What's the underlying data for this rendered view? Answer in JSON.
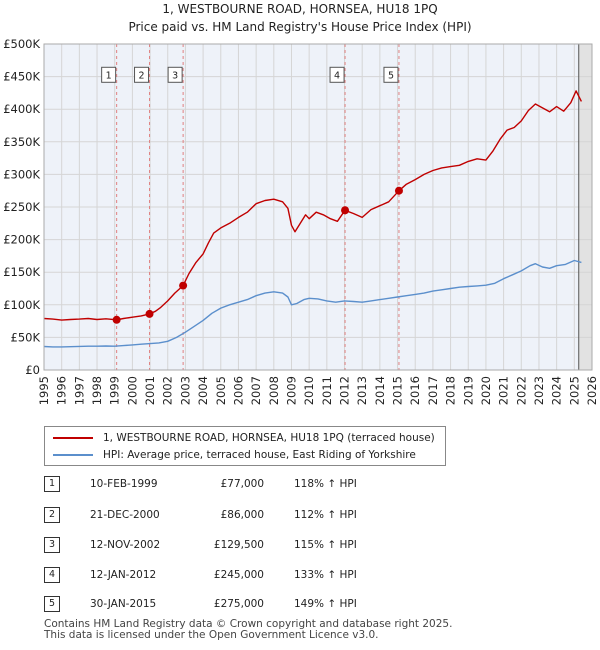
{
  "header": {
    "title": "1, WESTBOURNE ROAD, HORNSEA, HU18 1PQ",
    "subtitle": "Price paid vs. HM Land Registry's House Price Index (HPI)"
  },
  "chart_data": {
    "type": "line",
    "title": "1, WESTBOURNE ROAD, HORNSEA, HU18 1PQ",
    "subtitle": "Price paid vs. HM Land Registry's House Price Index (HPI)",
    "xlim": [
      1995,
      2026
    ],
    "ylim": [
      0,
      500000
    ],
    "x_ticks": [
      1995,
      1996,
      1997,
      1998,
      1999,
      2000,
      2001,
      2002,
      2003,
      2004,
      2005,
      2006,
      2007,
      2008,
      2009,
      2010,
      2011,
      2012,
      2013,
      2014,
      2015,
      2016,
      2017,
      2018,
      2019,
      2020,
      2021,
      2022,
      2023,
      2024,
      2025,
      2026
    ],
    "y_ticks": [
      0,
      50000,
      100000,
      150000,
      200000,
      250000,
      300000,
      350000,
      400000,
      450000,
      500000
    ],
    "y_tick_labels": [
      "£0",
      "£50K",
      "£100K",
      "£150K",
      "£200K",
      "£250K",
      "£300K",
      "£350K",
      "£400K",
      "£450K",
      "£500K"
    ],
    "colors": {
      "property": "#c00000",
      "hpi": "#5b8fcc",
      "grid": "#d5d5d5",
      "plot_bg": "#eef2f9",
      "marker_line": "#e08080"
    },
    "future_from": 2025.25,
    "series": [
      {
        "name": "1, WESTBOURNE ROAD, HORNSEA, HU18 1PQ (terraced house)",
        "color": "#c00000",
        "points": [
          [
            1995.0,
            79000
          ],
          [
            1995.5,
            78000
          ],
          [
            1996.0,
            76500
          ],
          [
            1996.5,
            77500
          ],
          [
            1997.0,
            78000
          ],
          [
            1997.5,
            79000
          ],
          [
            1998.0,
            77500
          ],
          [
            1998.5,
            78500
          ],
          [
            1999.11,
            77000
          ],
          [
            1999.5,
            79000
          ],
          [
            2000.0,
            81000
          ],
          [
            2000.5,
            83000
          ],
          [
            2000.97,
            86000
          ],
          [
            2001.3,
            90000
          ],
          [
            2001.6,
            96000
          ],
          [
            2002.0,
            106000
          ],
          [
            2002.4,
            118000
          ],
          [
            2002.87,
            129500
          ],
          [
            2003.2,
            148000
          ],
          [
            2003.6,
            165000
          ],
          [
            2004.0,
            178000
          ],
          [
            2004.3,
            195000
          ],
          [
            2004.6,
            210000
          ],
          [
            2005.0,
            218000
          ],
          [
            2005.5,
            225000
          ],
          [
            2006.0,
            234000
          ],
          [
            2006.5,
            242000
          ],
          [
            2007.0,
            255000
          ],
          [
            2007.5,
            260000
          ],
          [
            2008.0,
            262000
          ],
          [
            2008.5,
            258000
          ],
          [
            2008.8,
            248000
          ],
          [
            2009.0,
            222000
          ],
          [
            2009.2,
            212000
          ],
          [
            2009.5,
            225000
          ],
          [
            2009.8,
            238000
          ],
          [
            2010.0,
            232000
          ],
          [
            2010.4,
            242000
          ],
          [
            2010.8,
            238000
          ],
          [
            2011.2,
            232000
          ],
          [
            2011.6,
            228000
          ],
          [
            2012.03,
            245000
          ],
          [
            2012.5,
            240000
          ],
          [
            2013.0,
            234000
          ],
          [
            2013.5,
            246000
          ],
          [
            2014.0,
            252000
          ],
          [
            2014.5,
            258000
          ],
          [
            2015.08,
            275000
          ],
          [
            2015.5,
            285000
          ],
          [
            2016.0,
            292000
          ],
          [
            2016.5,
            300000
          ],
          [
            2017.0,
            306000
          ],
          [
            2017.5,
            310000
          ],
          [
            2018.0,
            312000
          ],
          [
            2018.5,
            314000
          ],
          [
            2019.0,
            320000
          ],
          [
            2019.5,
            324000
          ],
          [
            2020.0,
            322000
          ],
          [
            2020.4,
            336000
          ],
          [
            2020.8,
            354000
          ],
          [
            2021.2,
            368000
          ],
          [
            2021.6,
            372000
          ],
          [
            2022.0,
            382000
          ],
          [
            2022.4,
            398000
          ],
          [
            2022.8,
            408000
          ],
          [
            2023.2,
            402000
          ],
          [
            2023.6,
            396000
          ],
          [
            2024.0,
            404000
          ],
          [
            2024.4,
            397000
          ],
          [
            2024.8,
            410000
          ],
          [
            2025.1,
            428000
          ],
          [
            2025.4,
            412000
          ]
        ]
      },
      {
        "name": "HPI: Average price, terraced house, East Riding of Yorkshire",
        "color": "#5b8fcc",
        "points": [
          [
            1995.0,
            36000
          ],
          [
            1995.5,
            35500
          ],
          [
            1996.0,
            35500
          ],
          [
            1996.5,
            35800
          ],
          [
            1997.0,
            36200
          ],
          [
            1997.5,
            36500
          ],
          [
            1998.0,
            36500
          ],
          [
            1998.5,
            36800
          ],
          [
            1999.0,
            36500
          ],
          [
            1999.5,
            37500
          ],
          [
            2000.0,
            38500
          ],
          [
            2000.5,
            39500
          ],
          [
            2001.0,
            40500
          ],
          [
            2001.5,
            41500
          ],
          [
            2002.0,
            44000
          ],
          [
            2002.5,
            50000
          ],
          [
            2003.0,
            58000
          ],
          [
            2003.5,
            67000
          ],
          [
            2004.0,
            76000
          ],
          [
            2004.5,
            87000
          ],
          [
            2005.0,
            95000
          ],
          [
            2005.5,
            100000
          ],
          [
            2006.0,
            104000
          ],
          [
            2006.5,
            108000
          ],
          [
            2007.0,
            114000
          ],
          [
            2007.5,
            118000
          ],
          [
            2008.0,
            120000
          ],
          [
            2008.5,
            118000
          ],
          [
            2008.8,
            112000
          ],
          [
            2009.0,
            100000
          ],
          [
            2009.3,
            102000
          ],
          [
            2009.7,
            108000
          ],
          [
            2010.0,
            110000
          ],
          [
            2010.5,
            109000
          ],
          [
            2011.0,
            106000
          ],
          [
            2011.5,
            104000
          ],
          [
            2012.0,
            106000
          ],
          [
            2012.5,
            105000
          ],
          [
            2013.0,
            104000
          ],
          [
            2013.5,
            106000
          ],
          [
            2014.0,
            108000
          ],
          [
            2014.5,
            110000
          ],
          [
            2015.0,
            112000
          ],
          [
            2015.5,
            114000
          ],
          [
            2016.0,
            116000
          ],
          [
            2016.5,
            118000
          ],
          [
            2017.0,
            121000
          ],
          [
            2017.5,
            123000
          ],
          [
            2018.0,
            125000
          ],
          [
            2018.5,
            127000
          ],
          [
            2019.0,
            128000
          ],
          [
            2019.5,
            129000
          ],
          [
            2020.0,
            130000
          ],
          [
            2020.5,
            133000
          ],
          [
            2021.0,
            140000
          ],
          [
            2021.5,
            146000
          ],
          [
            2022.0,
            152000
          ],
          [
            2022.5,
            160000
          ],
          [
            2022.8,
            163000
          ],
          [
            2023.2,
            158000
          ],
          [
            2023.6,
            156000
          ],
          [
            2024.0,
            160000
          ],
          [
            2024.5,
            162000
          ],
          [
            2025.0,
            168000
          ],
          [
            2025.4,
            165000
          ]
        ]
      }
    ],
    "sales": [
      {
        "n": "1",
        "x": 1999.11,
        "price": 77000
      },
      {
        "n": "2",
        "x": 2000.97,
        "price": 86000
      },
      {
        "n": "3",
        "x": 2002.87,
        "price": 129500
      },
      {
        "n": "4",
        "x": 2012.03,
        "price": 245000
      },
      {
        "n": "5",
        "x": 2015.08,
        "price": 275000
      }
    ]
  },
  "legend": {
    "property_label": "1, WESTBOURNE ROAD, HORNSEA, HU18 1PQ (terraced house)",
    "hpi_label": "HPI: Average price, terraced house, East Riding of Yorkshire"
  },
  "sales_table": [
    {
      "n": "1",
      "date": "10-FEB-1999",
      "price": "£77,000",
      "hpi": "118% ↑ HPI"
    },
    {
      "n": "2",
      "date": "21-DEC-2000",
      "price": "£86,000",
      "hpi": "112% ↑ HPI"
    },
    {
      "n": "3",
      "date": "12-NOV-2002",
      "price": "£129,500",
      "hpi": "115% ↑ HPI"
    },
    {
      "n": "4",
      "date": "12-JAN-2012",
      "price": "£245,000",
      "hpi": "133% ↑ HPI"
    },
    {
      "n": "5",
      "date": "30-JAN-2015",
      "price": "£275,000",
      "hpi": "149% ↑ HPI"
    }
  ],
  "footer": {
    "line1": "Contains HM Land Registry data © Crown copyright and database right 2025.",
    "line2": "This data is licensed under the Open Government Licence v3.0."
  }
}
